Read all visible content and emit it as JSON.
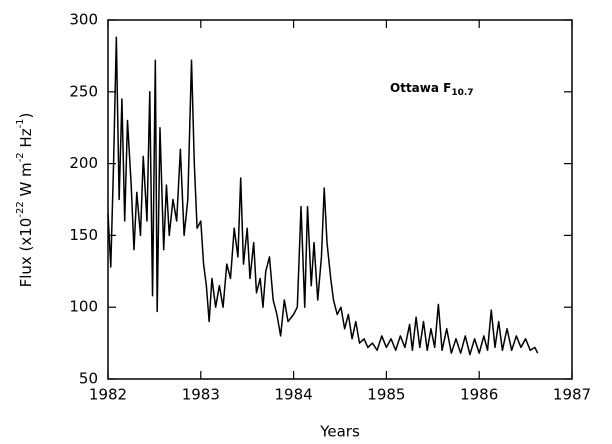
{
  "chart_data": {
    "type": "line",
    "annotation": {
      "text": "Ottawa F",
      "subscript": "10.7"
    },
    "xlabel": "Years",
    "ylabel": {
      "parts": [
        "Flux (x10",
        "-22",
        " W m",
        "-2",
        " Hz",
        "-1",
        ")"
      ]
    },
    "color": "#000000",
    "xlim": [
      1982,
      1987
    ],
    "xticks": [
      1982,
      1983,
      1984,
      1985,
      1986,
      1987
    ],
    "ylim": [
      50,
      300
    ],
    "yticks": [
      50,
      100,
      150,
      200,
      250,
      300
    ],
    "x": [
      1982.0,
      1982.03,
      1982.06,
      1982.09,
      1982.12,
      1982.15,
      1982.18,
      1982.21,
      1982.25,
      1982.28,
      1982.31,
      1982.35,
      1982.38,
      1982.42,
      1982.45,
      1982.48,
      1982.51,
      1982.53,
      1982.56,
      1982.6,
      1982.63,
      1982.66,
      1982.7,
      1982.74,
      1982.78,
      1982.82,
      1982.86,
      1982.9,
      1982.93,
      1982.96,
      1983.0,
      1983.03,
      1983.06,
      1983.09,
      1983.12,
      1983.16,
      1983.2,
      1983.24,
      1983.28,
      1983.32,
      1983.36,
      1983.4,
      1983.43,
      1983.46,
      1983.5,
      1983.53,
      1983.57,
      1983.6,
      1983.64,
      1983.67,
      1983.7,
      1983.74,
      1983.78,
      1983.82,
      1983.86,
      1983.9,
      1983.94,
      1984.0,
      1984.04,
      1984.08,
      1984.12,
      1984.15,
      1984.19,
      1984.22,
      1984.26,
      1984.3,
      1984.33,
      1984.36,
      1984.4,
      1984.43,
      1984.47,
      1984.51,
      1984.55,
      1984.59,
      1984.63,
      1984.67,
      1984.71,
      1984.76,
      1984.8,
      1984.85,
      1984.9,
      1984.95,
      1985.0,
      1985.05,
      1985.1,
      1985.15,
      1985.2,
      1985.25,
      1985.28,
      1985.32,
      1985.36,
      1985.4,
      1985.44,
      1985.48,
      1985.52,
      1985.56,
      1985.6,
      1985.65,
      1985.7,
      1985.75,
      1985.8,
      1985.85,
      1985.9,
      1985.95,
      1986.0,
      1986.05,
      1986.09,
      1986.13,
      1986.17,
      1986.21,
      1986.25,
      1986.3,
      1986.35,
      1986.4,
      1986.45,
      1986.5,
      1986.55,
      1986.6,
      1986.63
    ],
    "values": [
      165,
      128,
      200,
      288,
      175,
      245,
      160,
      230,
      185,
      140,
      180,
      150,
      205,
      160,
      250,
      108,
      272,
      97,
      225,
      140,
      185,
      150,
      175,
      160,
      210,
      150,
      175,
      272,
      200,
      155,
      160,
      130,
      115,
      90,
      120,
      100,
      115,
      100,
      130,
      120,
      155,
      135,
      190,
      130,
      155,
      120,
      145,
      110,
      120,
      100,
      125,
      135,
      105,
      95,
      80,
      105,
      90,
      95,
      100,
      170,
      100,
      170,
      115,
      145,
      105,
      135,
      183,
      145,
      120,
      105,
      95,
      100,
      85,
      95,
      78,
      90,
      75,
      78,
      72,
      75,
      70,
      80,
      72,
      78,
      70,
      80,
      72,
      88,
      70,
      93,
      72,
      90,
      70,
      85,
      72,
      102,
      70,
      85,
      68,
      78,
      68,
      80,
      67,
      78,
      68,
      80,
      70,
      98,
      72,
      90,
      70,
      85,
      70,
      80,
      72,
      78,
      70,
      72,
      68
    ]
  }
}
